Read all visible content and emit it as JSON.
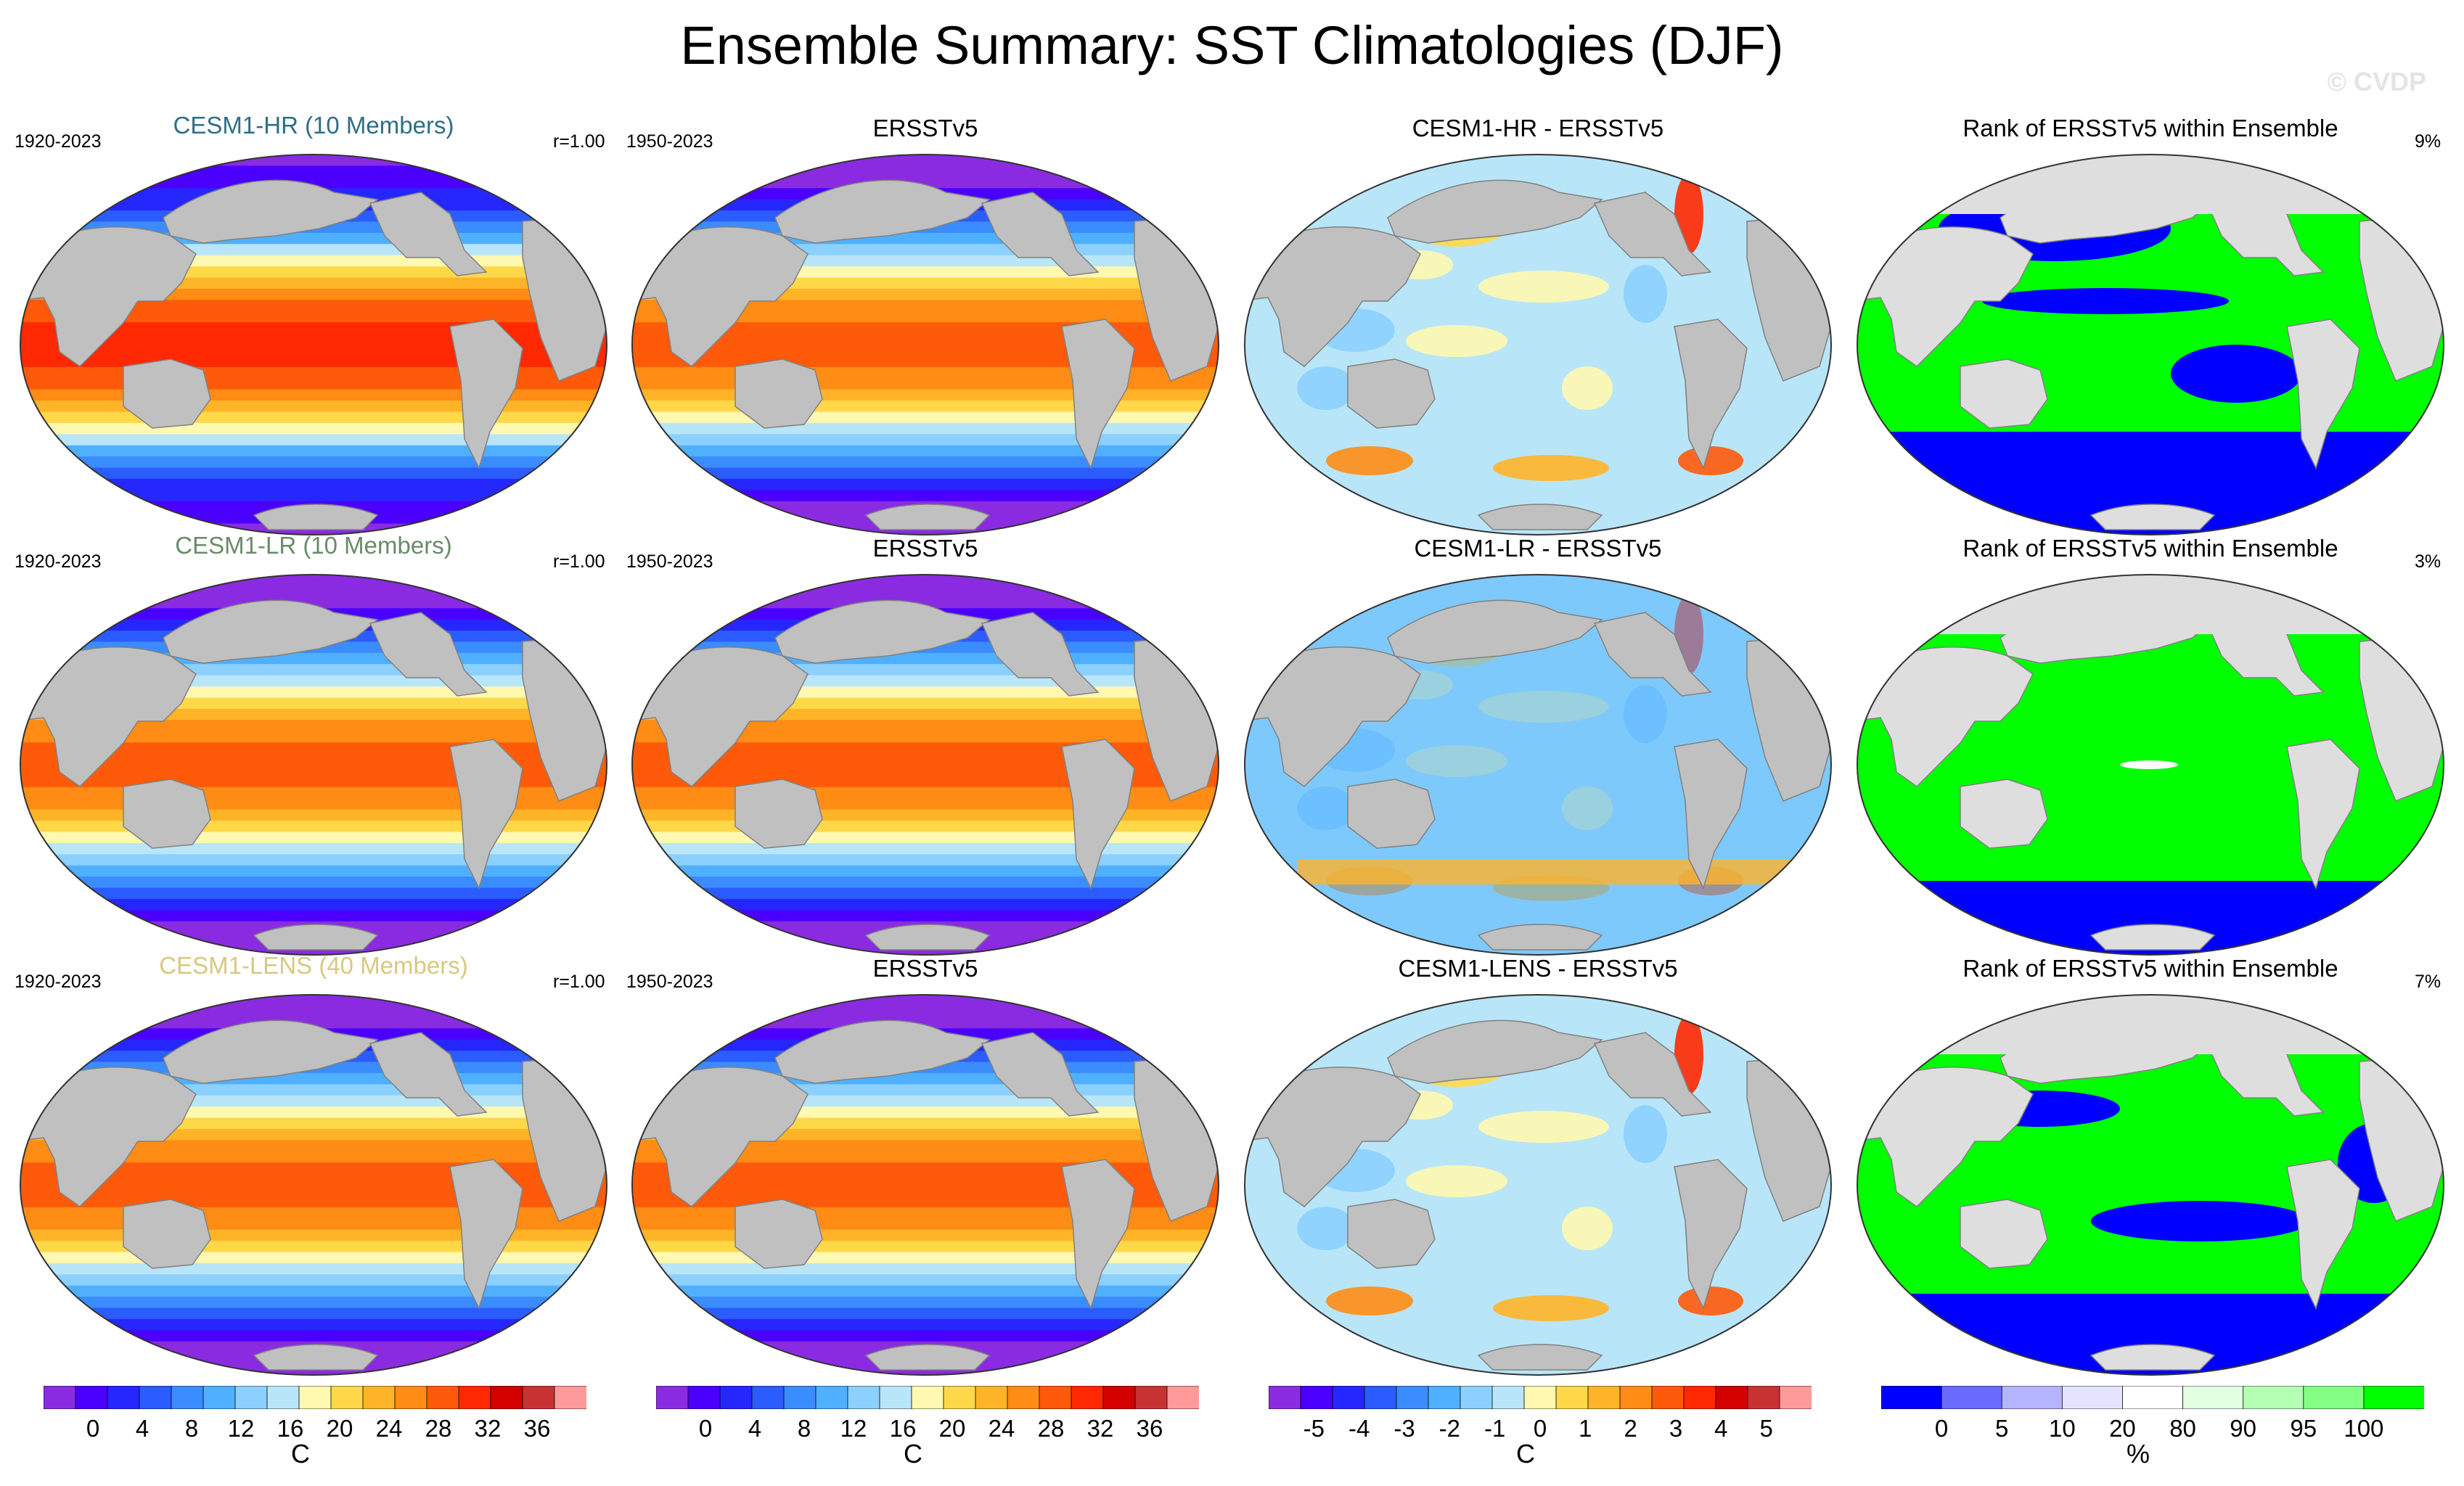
{
  "figure": {
    "title": "Ensemble Summary: SST Climatologies (DJF)",
    "watermark": "© CVDP"
  },
  "rows": [
    {
      "ensemble_title": "CESM1-HR (10 Members)",
      "ensemble_title_color": "#2e6e86",
      "model_years": "1920-2023",
      "corr": "r=1.00",
      "obs_title": "ERSSTv5",
      "obs_years": "1950-2023",
      "diff_title": "CESM1-HR - ERSSTv5",
      "rank_title": "Rank of ERSSTv5 within Ensemble",
      "rank_pct": "9%"
    },
    {
      "ensemble_title": "CESM1-LR (10 Members)",
      "ensemble_title_color": "#6a8a6a",
      "model_years": "1920-2023",
      "corr": "r=1.00",
      "obs_title": "ERSSTv5",
      "obs_years": "1950-2023",
      "diff_title": "CESM1-LR - ERSSTv5",
      "rank_title": "Rank of ERSSTv5 within Ensemble",
      "rank_pct": "3%"
    },
    {
      "ensemble_title": "CESM1-LENS (40 Members)",
      "ensemble_title_color": "#d8c880",
      "model_years": "1920-2023",
      "corr": "r=1.00",
      "obs_title": "ERSSTv5",
      "obs_years": "1950-2023",
      "diff_title": "CESM1-LENS - ERSSTv5",
      "rank_title": "Rank of ERSSTv5 within Ensemble",
      "rank_pct": "7%"
    }
  ],
  "colorbars": {
    "sst": {
      "colors": [
        "#8a2be2",
        "#4b00ff",
        "#2626ff",
        "#2b5cff",
        "#3b8cff",
        "#4fb0ff",
        "#8cd0ff",
        "#b8e6f8",
        "#fff8b0",
        "#ffd84a",
        "#ffb428",
        "#ff8c14",
        "#ff5a0a",
        "#ff2800",
        "#d40000",
        "#c83232",
        "#ff9a9a"
      ],
      "ticks": [
        "0",
        "4",
        "8",
        "12",
        "16",
        "20",
        "24",
        "28",
        "32",
        "36"
      ],
      "unit": "C"
    },
    "obs": {
      "colors": [
        "#8a2be2",
        "#4b00ff",
        "#2626ff",
        "#2b5cff",
        "#3b8cff",
        "#4fb0ff",
        "#8cd0ff",
        "#b8e6f8",
        "#fff8b0",
        "#ffd84a",
        "#ffb428",
        "#ff8c14",
        "#ff5a0a",
        "#ff2800",
        "#d40000",
        "#c83232",
        "#ff9a9a"
      ],
      "ticks": [
        "0",
        "4",
        "8",
        "12",
        "16",
        "20",
        "24",
        "28",
        "32",
        "36"
      ],
      "unit": "C"
    },
    "diff": {
      "colors": [
        "#8a2be2",
        "#4b00ff",
        "#2626ff",
        "#2b5cff",
        "#3b8cff",
        "#4fb0ff",
        "#8cd0ff",
        "#b8e6f8",
        "#fff8b0",
        "#ffd84a",
        "#ffb428",
        "#ff8c14",
        "#ff5a0a",
        "#ff2800",
        "#d40000",
        "#c83232",
        "#ff9a9a"
      ],
      "ticks": [
        "-5",
        "-4",
        "-3",
        "-2",
        "-1",
        "0",
        "1",
        "2",
        "3",
        "4",
        "5"
      ],
      "unit": "C"
    },
    "rank": {
      "colors": [
        "#0000ff",
        "#6a6aff",
        "#b4b4ff",
        "#e4e4ff",
        "#ffffff",
        "#e2ffe2",
        "#b4ffb4",
        "#84ff84",
        "#00ff00"
      ],
      "ticks": [
        "0",
        "5",
        "10",
        "20",
        "80",
        "90",
        "95",
        "100"
      ],
      "unit": "%"
    }
  }
}
